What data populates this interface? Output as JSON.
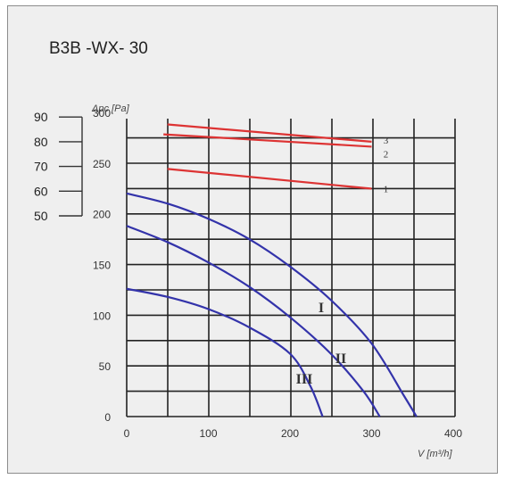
{
  "chart_data": {
    "type": "line",
    "title": "B3B -WX- 30",
    "xlabel": "V [m³/h]",
    "ylabel": "Δpc [Pa]",
    "x_ticks": [
      "0",
      "100",
      "200",
      "300",
      "400"
    ],
    "xlim": [
      0,
      400
    ],
    "y_ticks": [
      "0",
      "50",
      "100",
      "150",
      "200",
      "250",
      "300"
    ],
    "ylim": [
      0,
      300
    ],
    "grid": true,
    "secondary_axis": {
      "ticks": [
        "90",
        "80",
        "70",
        "60",
        "50"
      ],
      "range": [
        50,
        90
      ]
    },
    "series": [
      {
        "name": "I",
        "color": "#3333aa",
        "axis": "primary",
        "points": [
          [
            0,
            220
          ],
          [
            50,
            210
          ],
          [
            100,
            195
          ],
          [
            150,
            175
          ],
          [
            200,
            148
          ],
          [
            250,
            115
          ],
          [
            300,
            72
          ],
          [
            340,
            20
          ],
          [
            355,
            0
          ]
        ]
      },
      {
        "name": "II",
        "color": "#3333aa",
        "axis": "primary",
        "points": [
          [
            0,
            188
          ],
          [
            50,
            172
          ],
          [
            100,
            152
          ],
          [
            150,
            128
          ],
          [
            200,
            98
          ],
          [
            250,
            62
          ],
          [
            290,
            25
          ],
          [
            310,
            0
          ]
        ]
      },
      {
        "name": "III",
        "color": "#3333aa",
        "axis": "primary",
        "points": [
          [
            0,
            126
          ],
          [
            50,
            118
          ],
          [
            100,
            106
          ],
          [
            150,
            88
          ],
          [
            200,
            62
          ],
          [
            225,
            30
          ],
          [
            240,
            0
          ]
        ]
      },
      {
        "name": "3",
        "color": "#dd3333",
        "axis": "secondary",
        "points": [
          [
            50,
            87
          ],
          [
            300,
            80
          ]
        ]
      },
      {
        "name": "2",
        "color": "#dd3333",
        "axis": "secondary",
        "points": [
          [
            45,
            83
          ],
          [
            300,
            78
          ]
        ]
      },
      {
        "name": "1",
        "color": "#dd3333",
        "axis": "secondary",
        "points": [
          [
            50,
            69
          ],
          [
            300,
            61
          ]
        ]
      }
    ]
  }
}
